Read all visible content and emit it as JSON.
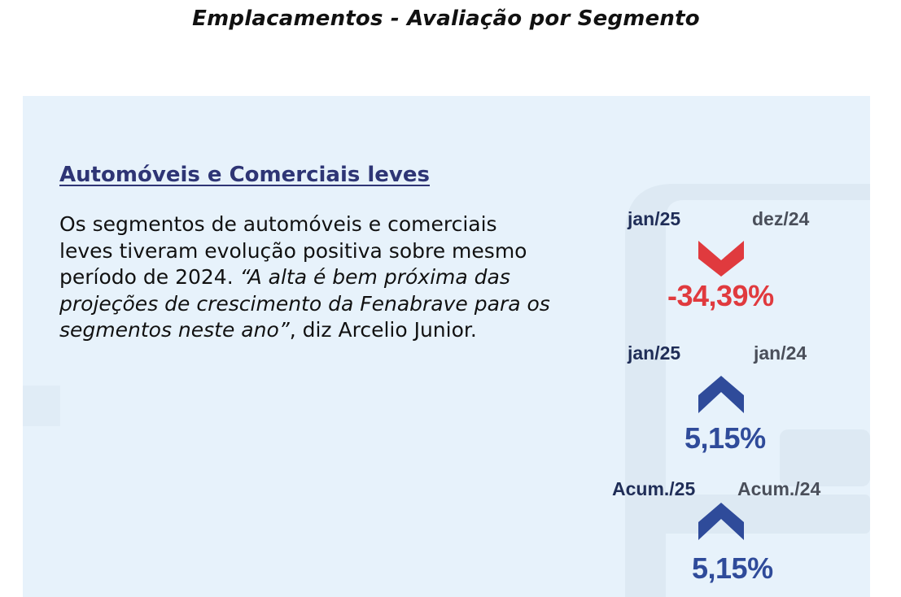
{
  "page": {
    "title": "Emplacamentos - Avaliação por Segmento"
  },
  "segment": {
    "heading": "Automóveis e Comerciais leves",
    "body_plain": "Os segmentos de automóveis e comerciais leves tiveram evolução positiva sobre mesmo período de 2024. ",
    "body_quote": "“A alta é bem próxima das projeções de crescimento da Fenabrave para os segmentos neste ano”",
    "body_end": ", diz Arcelio Junior."
  },
  "indicators": [
    {
      "current_label": "jan/25",
      "previous_label": "dez/24",
      "direction": "down",
      "value": "-34,39%",
      "color": "#e03a3e",
      "icon": "chevron-down-icon"
    },
    {
      "current_label": "jan/25",
      "previous_label": "jan/24",
      "direction": "up",
      "value": "5,15%",
      "color": "#2f4b9a",
      "icon": "chevron-up-icon"
    },
    {
      "current_label": "Acum./25",
      "previous_label": "Acum./24",
      "direction": "up",
      "value": "5,15%",
      "color": "#2f4b9a",
      "icon": "chevron-up-icon"
    }
  ],
  "colors": {
    "panel_background": "#e7f2fb",
    "heading": "#2e3575",
    "negative": "#e03a3e",
    "positive": "#2f4b9a"
  }
}
